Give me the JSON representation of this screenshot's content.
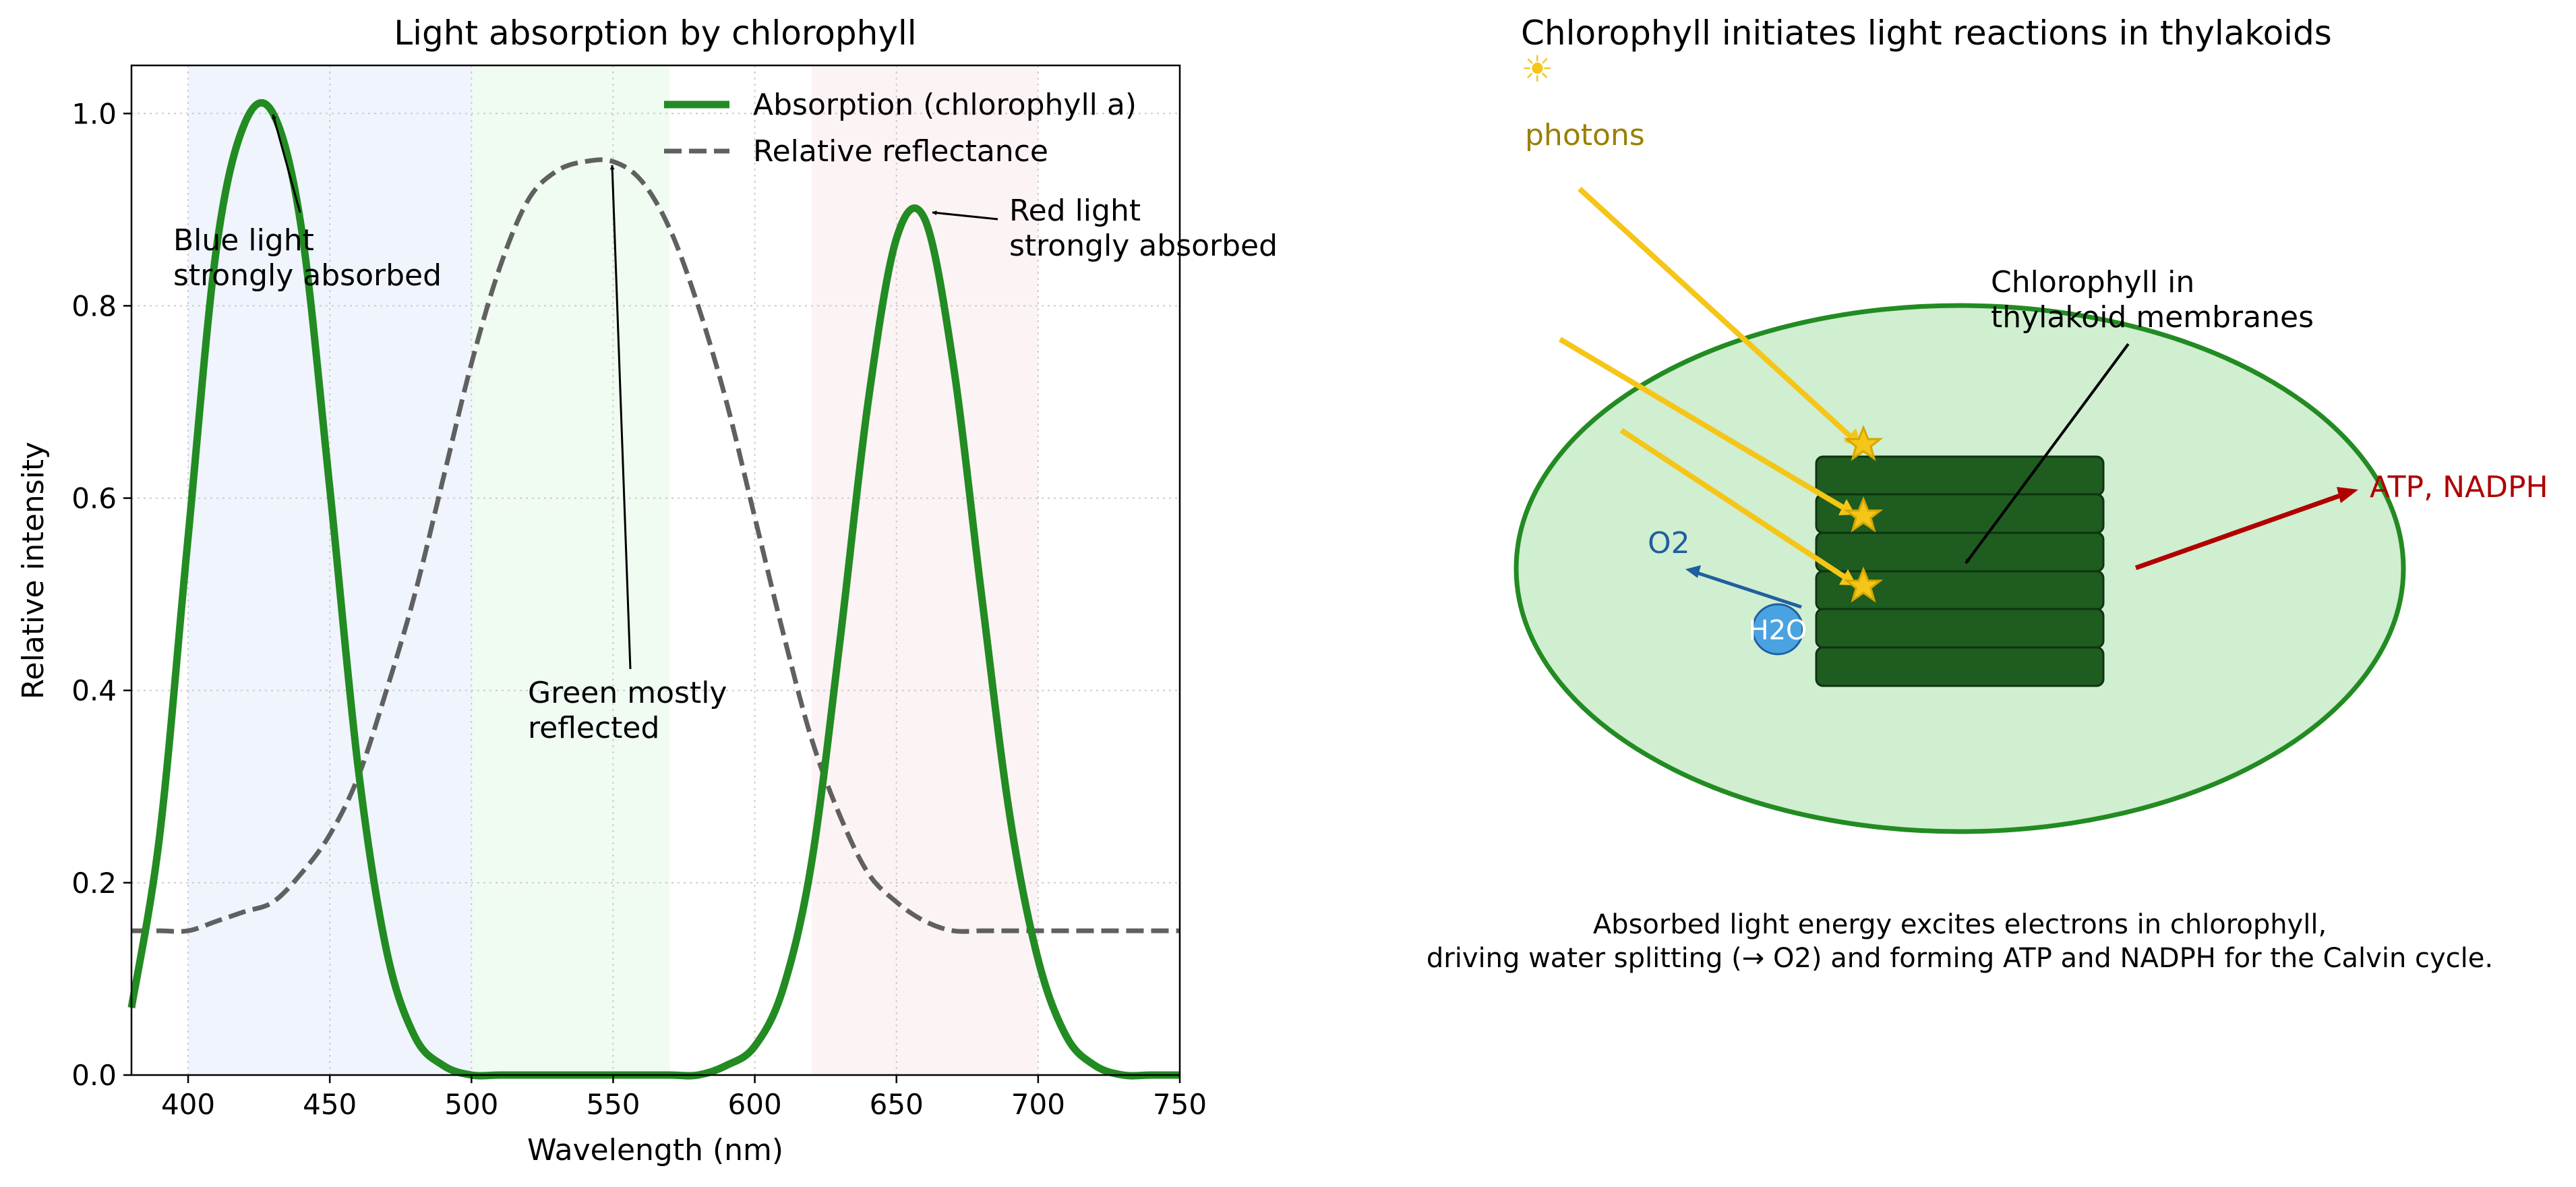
{
  "left_panel": {
    "title": "Light absorption by chlorophyll",
    "annotations": {
      "blue_line1": "Blue light",
      "blue_line2": "strongly absorbed",
      "red_line1": "Red light",
      "red_line2": "strongly absorbed",
      "green_line1": "Green mostly",
      "green_line2": "reflected"
    }
  },
  "chart_data": {
    "type": "line",
    "title": "Light absorption by chlorophyll",
    "xlabel": "Wavelength (nm)",
    "ylabel": "Relative intensity",
    "xlim": [
      380,
      750
    ],
    "ylim": [
      0,
      1.05
    ],
    "xticks": [
      400,
      450,
      500,
      550,
      600,
      650,
      700,
      750
    ],
    "yticks": [
      0.0,
      0.2,
      0.4,
      0.6,
      0.8,
      1.0
    ],
    "grid": true,
    "legend_position": "top-right",
    "colors": {
      "absorption": "#228b22",
      "reflectance": "#606060"
    },
    "shaded_bands": [
      {
        "x": [
          400,
          500
        ],
        "color": "#c8d6f5"
      },
      {
        "x": [
          500,
          570
        ],
        "color": "#c8f0cf"
      },
      {
        "x": [
          620,
          700
        ],
        "color": "#f5d3d8"
      }
    ],
    "x": [
      380,
      390,
      400,
      410,
      420,
      430,
      440,
      450,
      460,
      470,
      480,
      490,
      500,
      510,
      520,
      530,
      540,
      550,
      560,
      570,
      580,
      590,
      600,
      610,
      620,
      630,
      640,
      650,
      660,
      670,
      680,
      690,
      700,
      710,
      720,
      730,
      740,
      750
    ],
    "series": [
      {
        "name": "Absorption (chlorophyll a)",
        "values": [
          0.07,
          0.25,
          0.56,
          0.86,
          0.99,
          1.0,
          0.88,
          0.61,
          0.32,
          0.13,
          0.04,
          0.01,
          0.0,
          0.0,
          0.0,
          0.0,
          0.0,
          0.0,
          0.0,
          0.0,
          0.0,
          0.01,
          0.03,
          0.09,
          0.22,
          0.45,
          0.7,
          0.87,
          0.89,
          0.74,
          0.5,
          0.27,
          0.12,
          0.04,
          0.01,
          0.0,
          0.0,
          0.0
        ]
      },
      {
        "name": "Relative reflectance",
        "values": [
          0.15,
          0.15,
          0.15,
          0.16,
          0.17,
          0.18,
          0.21,
          0.25,
          0.31,
          0.4,
          0.5,
          0.62,
          0.74,
          0.84,
          0.91,
          0.94,
          0.95,
          0.95,
          0.93,
          0.88,
          0.8,
          0.7,
          0.58,
          0.46,
          0.35,
          0.27,
          0.21,
          0.18,
          0.16,
          0.15,
          0.15,
          0.15,
          0.15,
          0.15,
          0.15,
          0.15,
          0.15,
          0.15
        ]
      }
    ]
  },
  "right_panel": {
    "title": "Chlorophyll initiates light reactions in thylakoids",
    "sun_glyph": "☀",
    "photons_label": "photons",
    "chlorophyll_label_line1": "Chlorophyll in",
    "chlorophyll_label_line2": "thylakoid membranes",
    "o2_label": "O2",
    "h2o_label": "H2O",
    "atp_label": "ATP, NADPH",
    "caption_line1": "Absorbed light energy excites electrons in chlorophyll,",
    "caption_line2": "driving water splitting (→ O2) and forming ATP and NADPH for the Calvin cycle.",
    "colors": {
      "chloroplast_fill": "#d0eed0",
      "chloroplast_stroke": "#228b22",
      "thylakoid": "#1e5c20",
      "photon_arrow": "#f5c518",
      "star": "#f5c518",
      "o2": "#1f5fa0",
      "water": "#4aa3e0",
      "atp": "#b00000",
      "photons_text": "#9a8000"
    }
  }
}
